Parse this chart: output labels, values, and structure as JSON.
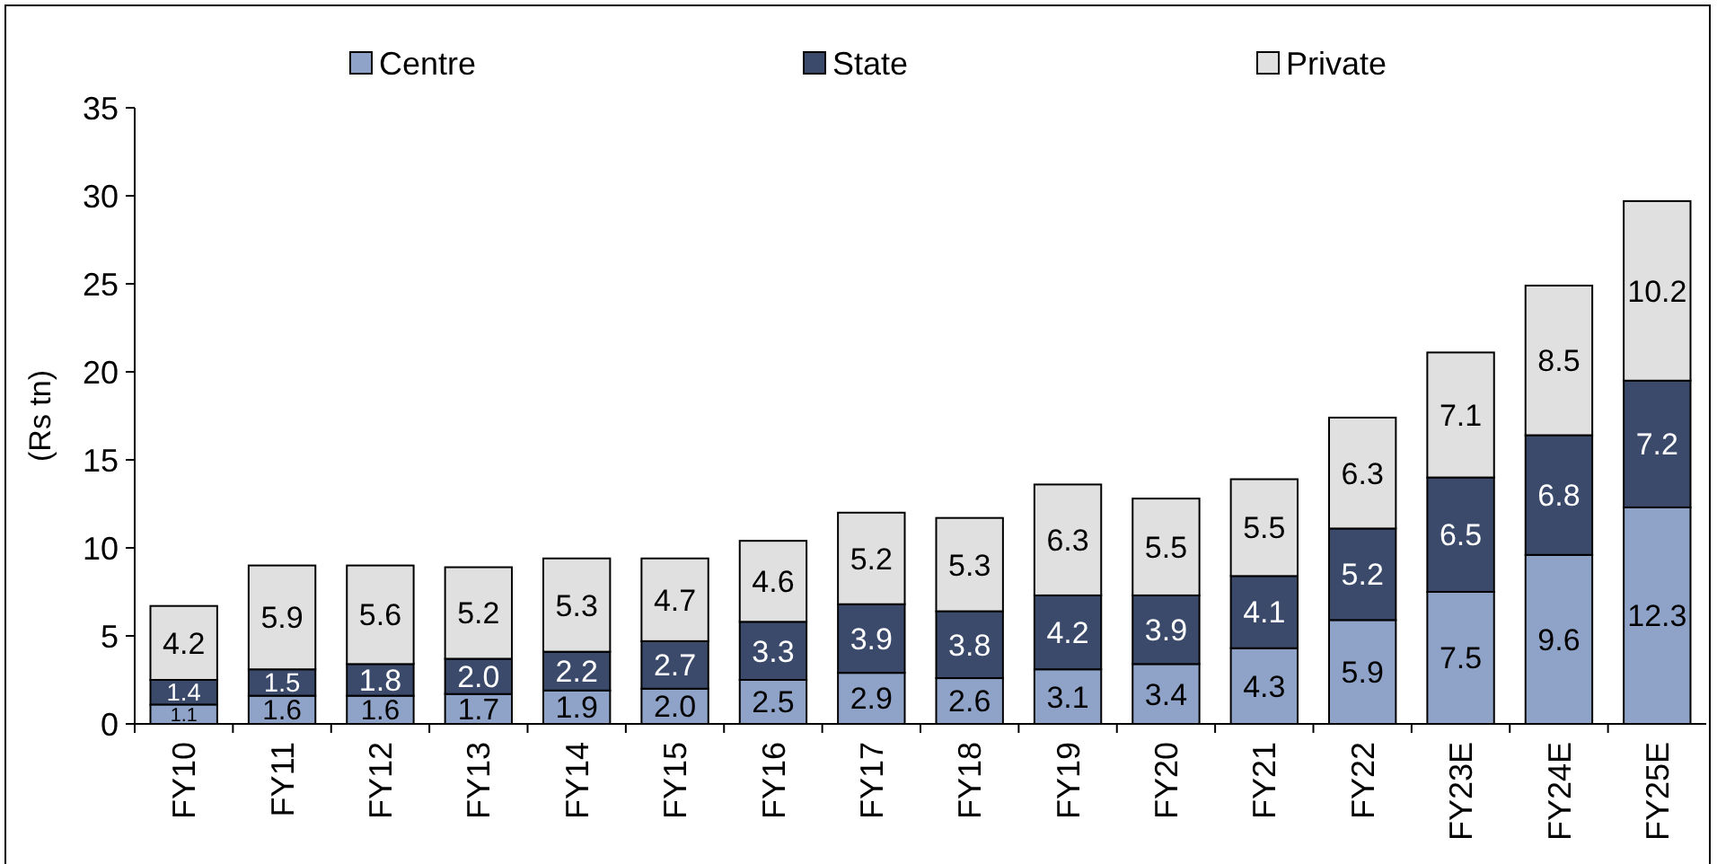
{
  "chart_data": {
    "type": "bar",
    "stacked": true,
    "ylabel": "(Rs tn)",
    "categories": [
      "FY10",
      "FY11",
      "FY12",
      "FY13",
      "FY14",
      "FY15",
      "FY16",
      "FY17",
      "FY18",
      "FY19",
      "FY20",
      "FY21",
      "FY22",
      "FY23E",
      "FY24E",
      "FY25E"
    ],
    "series": [
      {
        "name": "Centre",
        "color": "#8fa3c9",
        "values": [
          1.1,
          1.6,
          1.6,
          1.7,
          1.9,
          2.0,
          2.5,
          2.9,
          2.6,
          3.1,
          3.4,
          4.3,
          5.9,
          7.5,
          9.6,
          12.3
        ],
        "value_labels": [
          "1.1",
          "1.6",
          "1.6",
          "1.7",
          "1.9",
          "2.0",
          "2.5",
          "2.9",
          "2.6",
          "3.1",
          "3.4",
          "4.3",
          "5.9",
          "7.5",
          "9.6",
          "12.3"
        ]
      },
      {
        "name": "State",
        "color": "#3b4a6b",
        "values": [
          1.4,
          1.5,
          1.8,
          2.0,
          2.2,
          2.7,
          3.3,
          3.9,
          3.8,
          4.2,
          3.9,
          4.1,
          5.2,
          6.5,
          6.8,
          7.2
        ],
        "value_labels": [
          "1.4",
          "1.5",
          "1.8",
          "2.0",
          "2.2",
          "2.7",
          "3.3",
          "3.9",
          "3.8",
          "4.2",
          "3.9",
          "4.1",
          "5.2",
          "6.5",
          "6.8",
          "7.2"
        ]
      },
      {
        "name": "Private",
        "color": "#e0e0e0",
        "values": [
          4.2,
          5.9,
          5.6,
          5.2,
          5.3,
          4.7,
          4.6,
          5.2,
          5.3,
          6.3,
          5.5,
          5.5,
          6.3,
          7.1,
          8.5,
          10.2
        ],
        "value_labels": [
          "4.2",
          "5.9",
          "5.6",
          "5.2",
          "5.3",
          "4.7",
          "4.6",
          "5.2",
          "5.3",
          "6.3",
          "5.5",
          "5.5",
          "6.3",
          "7.1",
          "8.5",
          "10.2"
        ]
      }
    ],
    "ylim": [
      0,
      35
    ],
    "yticks": [
      0,
      5,
      10,
      15,
      20,
      25,
      30,
      35
    ],
    "legend": "top",
    "grid": false
  }
}
